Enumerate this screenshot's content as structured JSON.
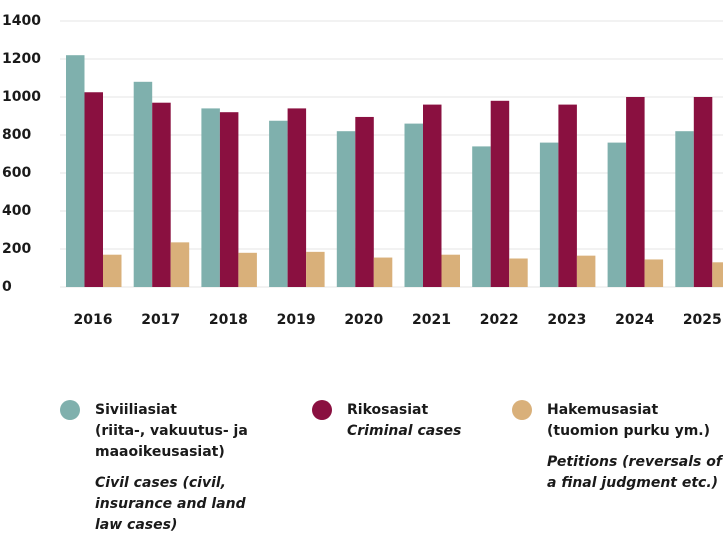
{
  "chart_data": {
    "type": "bar",
    "categories": [
      "2016",
      "2017",
      "2018",
      "2019",
      "2020",
      "2021",
      "2022",
      "2023",
      "2024",
      "2025"
    ],
    "series": [
      {
        "name": "Siviiliasiat",
        "color": "#7fb0ad",
        "values": [
          1220,
          1080,
          940,
          875,
          820,
          860,
          740,
          760,
          760,
          820
        ],
        "note": [
          "(riita-, vakuutus- ja",
          "maaoikeusasiat)"
        ],
        "english": [
          "Civil cases (civil,",
          "insurance and land",
          "law cases)"
        ]
      },
      {
        "name": "Rikosasiat",
        "color": "#8a1040",
        "values": [
          1025,
          970,
          920,
          940,
          895,
          960,
          980,
          960,
          1000,
          1000
        ],
        "english": [
          "Criminal cases"
        ]
      },
      {
        "name": "Hakemusasiat",
        "color": "#d9b07a",
        "values": [
          170,
          235,
          180,
          185,
          155,
          170,
          150,
          165,
          145,
          130
        ],
        "note": [
          "(tuomion purku ym.)"
        ],
        "english": [
          "Petitions (reversals of",
          "a final judgment etc.)"
        ]
      }
    ],
    "ylim": [
      0,
      1400
    ],
    "yticks": [
      0,
      200,
      400,
      600,
      800,
      1000,
      1200,
      1400
    ],
    "grid": true
  }
}
